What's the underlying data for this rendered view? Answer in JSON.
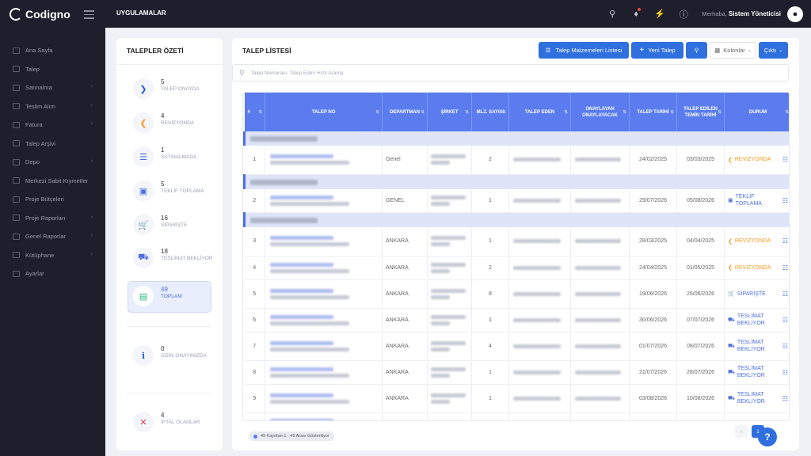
{
  "brand": {
    "name": "Codigno"
  },
  "topbar": {
    "menu_label": "UYGULAMALAR",
    "greeting": "Merhaba,",
    "user_name": "Sistem Yöneticisi"
  },
  "sidebar": {
    "items": [
      {
        "label": "Ana Sayfa",
        "has_children": false
      },
      {
        "label": "Talep",
        "has_children": false
      },
      {
        "label": "Satınalma",
        "has_children": true
      },
      {
        "label": "Teslim Alım",
        "has_children": true
      },
      {
        "label": "Fatura",
        "has_children": true
      },
      {
        "label": "Talep Arşivi",
        "has_children": false
      },
      {
        "label": "Depo",
        "has_children": true
      },
      {
        "label": "Merkezi Sabit Kıymetler",
        "has_children": false
      },
      {
        "label": "Proje Bütçeleri",
        "has_children": false
      },
      {
        "label": "Proje Raporları",
        "has_children": true
      },
      {
        "label": "Genel Raporlar",
        "has_children": true
      },
      {
        "label": "Kütüphane",
        "has_children": true
      },
      {
        "label": "Ayarlar",
        "has_children": false
      }
    ]
  },
  "summary": {
    "title": "TALEPLER ÖZETİ",
    "stats": [
      {
        "count": "5",
        "label": "TALEP ONAYDA",
        "icon": "chevron-right-icon",
        "color": "#2f5fd0"
      },
      {
        "count": "4",
        "label": "REVİZYONDA",
        "icon": "chevron-left-icon",
        "color": "#f39a1e"
      },
      {
        "count": "1",
        "label": "SATINALMADA",
        "icon": "layers-icon",
        "color": "#4d6ee0"
      },
      {
        "count": "5",
        "label": "TEKLİF TOPLAMA",
        "icon": "store-icon",
        "color": "#4d6ee0"
      },
      {
        "count": "16",
        "label": "SİPARİŞTE",
        "icon": "cart-icon",
        "color": "#4d6ee0"
      },
      {
        "count": "18",
        "label": "TESLİMAT BEKLİYOR",
        "icon": "truck-icon",
        "color": "#4d6ee0"
      },
      {
        "count": "49",
        "label": "TOPLAM",
        "icon": "document-icon",
        "color": "#2ab77d"
      },
      {
        "count": "0",
        "label": "SİZİN ONAYINIZDA",
        "icon": "info-icon",
        "color": "#2f5fd0"
      },
      {
        "count": "4",
        "label": "İPTAL OLANLAR",
        "icon": "close-icon",
        "color": "#e4395a"
      }
    ]
  },
  "main": {
    "title": "TALEP LİSTESİ",
    "buttons": {
      "materials": "Talep Malzemeleri Listesi",
      "new_request": "Yeni Talep",
      "columns": "Kolonlar",
      "export": "Çıktı"
    },
    "search_placeholder": "Talep Numarası, Talep Eden Hızlı Arama",
    "columns": [
      "#",
      "TALEP NO",
      "DEPARTMAN",
      "ŞİRKET",
      "MLZ. SAYISI",
      "TALEP EDEN",
      "ONAYLAYAN ONAYLAYACAK",
      "TALEP TARİHİ",
      "TALEP EDİLEN TEMİN TARİHİ",
      "DURUM"
    ],
    "rows": [
      {
        "no": "1",
        "department": "Genel",
        "qty": "2",
        "date": "24/02/2025",
        "due": "03/03/2025",
        "status": "REVİZYONDA",
        "status_type": "rev",
        "group_before": true
      },
      {
        "no": "2",
        "department": "GENEL",
        "qty": "1",
        "date": "29/07/2026",
        "due": "05/08/2026",
        "status": "TEKLİF TOPLAMA",
        "status_type": "blue",
        "group_before": true
      },
      {
        "no": "3",
        "department": "ANKARA",
        "qty": "1",
        "date": "28/03/2025",
        "due": "04/04/2025",
        "status": "REVİZYONDA",
        "status_type": "rev",
        "group_before": true
      },
      {
        "no": "4",
        "department": "ANKARA",
        "qty": "2",
        "date": "24/04/2025",
        "due": "01/05/2025",
        "status": "REVİZYONDA",
        "status_type": "rev",
        "group_before": false
      },
      {
        "no": "5",
        "department": "ANKARA",
        "qty": "8",
        "date": "19/06/2026",
        "due": "26/06/2026",
        "status": "SİPARİŞTE",
        "status_type": "blue",
        "group_before": false
      },
      {
        "no": "6",
        "department": "ANKARA",
        "qty": "1",
        "date": "30/06/2026",
        "due": "07/07/2026",
        "status": "TESLİMAT BEKLİYOR",
        "status_type": "blue",
        "group_before": false
      },
      {
        "no": "7",
        "department": "ANKARA",
        "qty": "4",
        "date": "01/07/2026",
        "due": "08/07/2026",
        "status": "TESLİMAT BEKLİYOR",
        "status_type": "blue",
        "group_before": false
      },
      {
        "no": "8",
        "department": "ANKARA",
        "qty": "1",
        "date": "21/07/2026",
        "due": "28/07/2026",
        "status": "TESLİMAT BEKLİYOR",
        "status_type": "blue",
        "group_before": false
      },
      {
        "no": "9",
        "department": "ANKARA",
        "qty": "1",
        "date": "03/08/2026",
        "due": "10/08/2026",
        "status": "TESLİMAT BEKLİYOR",
        "status_type": "blue",
        "group_before": false
      }
    ],
    "footer_info": "49 Kayıttan 1 - 49 Arası Gösteriliyor",
    "current_page": "1"
  },
  "colors": {
    "primary": "#2f6fde",
    "header": "#5a7cee",
    "sidebar": "#1e1e2d",
    "danger": "#e4395a",
    "warning": "#f39a1e"
  }
}
